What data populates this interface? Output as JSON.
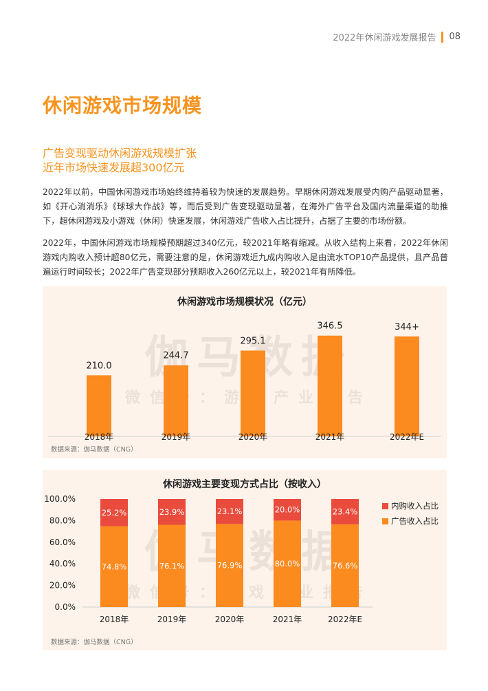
{
  "header": {
    "report_title": "2022年休闲游戏发展报告",
    "page_number": "08"
  },
  "page_title": "休闲游戏市场规模",
  "subtitle": [
    "广告变现驱动休闲游戏规模扩张",
    "近年市场快速发展超300亿元"
  ],
  "paragraphs": [
    "2022年以前，中国休闲游戏市场始终维持着较为快速的发展趋势。早期休闲游戏发展受内购产品驱动显著，如《开心消消乐》《球球大作战》等，而后受到广告变现驱动显著，在海外广告平台及国内流量渠道的助推下，超休闲游戏及小游戏（休闲）快速发展，休闲游戏广告收入占比提升，占据了主要的市场份额。",
    "2022年，中国休闲游戏市场规模预期超过340亿元，较2021年略有缩减。从收入结构上来看，2022年休闲游戏内购收入预计超80亿元，需要注意的是，休闲游戏近九成内购收入是由流水TOP10产品提供，且产品普遍运行时间较长；2022年广告变现部分预期收入260亿元以上，较2021年有所降低。"
  ],
  "watermark": {
    "main": "伽马数据",
    "sub": "微信号：游戏产业报告"
  },
  "colors": {
    "accent": "#f7931e",
    "bar": "#fb8a1f",
    "inapp": "#e94b3c",
    "panel": "#fdf3ea"
  },
  "chart_data": [
    {
      "type": "bar",
      "title": "休闲游戏市场规模状况（亿元）",
      "categories": [
        "2018年",
        "2019年",
        "2020年",
        "2021年",
        "2022年E"
      ],
      "values": [
        210.0,
        244.7,
        295.1,
        346.5,
        344
      ],
      "labels": [
        "210.0",
        "244.7",
        "295.1",
        "346.5",
        "344+"
      ],
      "ylim": [
        0,
        360
      ],
      "source": "数据来源：伽马数据（CNG）"
    },
    {
      "type": "bar",
      "stacked": true,
      "title": "休闲游戏主要变现方式占比（按收入）",
      "categories": [
        "2018年",
        "2019年",
        "2020年",
        "2021年",
        "2022年E"
      ],
      "series": [
        {
          "name": "广告收入占比",
          "values": [
            74.8,
            76.1,
            76.9,
            80.0,
            76.6
          ],
          "labels": [
            "74.8%",
            "76.1%",
            "76.9%",
            "80.0%",
            "76.6%"
          ]
        },
        {
          "name": "内购收入占比",
          "values": [
            25.2,
            23.9,
            23.1,
            20.0,
            23.4
          ],
          "labels": [
            "25.2%",
            "23.9%",
            "23.1%",
            "20.0%",
            "23.4%"
          ]
        }
      ],
      "yticks": [
        "0.0%",
        "20.0%",
        "40.0%",
        "60.0%",
        "80.0%",
        "100.0%"
      ],
      "ylim": [
        0,
        100
      ],
      "legend_position": "right",
      "legend": [
        "内购收入占比",
        "广告收入占比"
      ],
      "source": "数据来源：伽马数据（CNG）"
    }
  ]
}
